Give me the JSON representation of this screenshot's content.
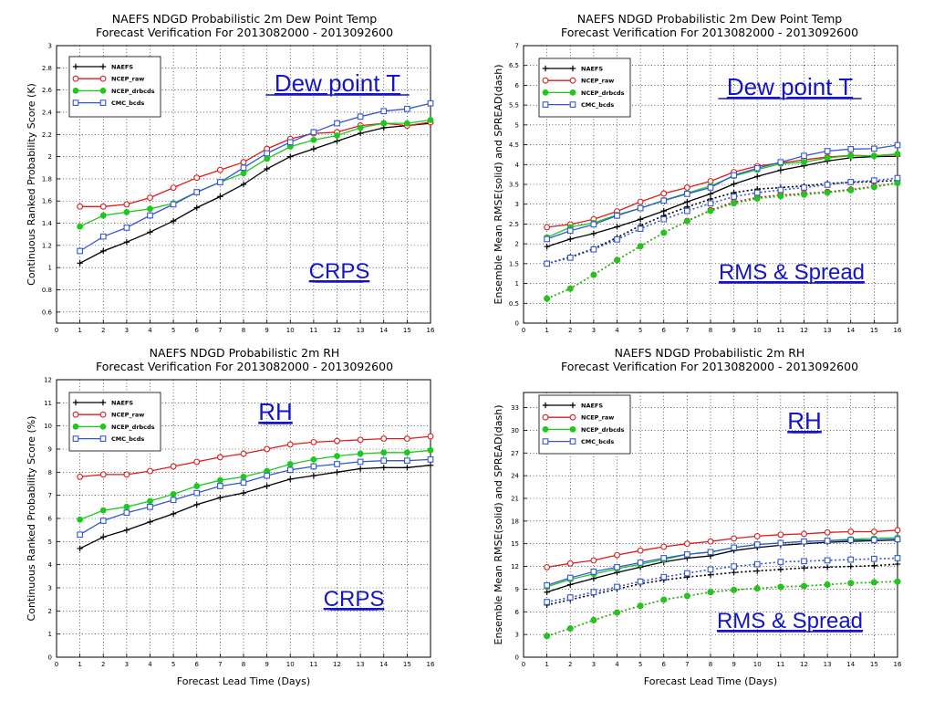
{
  "figure": {
    "background": "#ffffff",
    "annotation_color": "#1414c8",
    "series_colors": {
      "NAEFS": "#000000",
      "NCEP_raw": "#dd1c1c",
      "NCEP_drbcds": "#1dc91d",
      "CMC_bcds": "#3457d4"
    }
  },
  "chart_data": [
    {
      "type": "line",
      "title": "NAEFS NDGD Probabilistic 2m Dew Point Temp",
      "subtitle": "Forecast Verification For 2013082000 - 2013092600",
      "xlabel": "",
      "ylabel": "Continuous Ranked Probability Score (K)",
      "xlim": [
        0,
        16
      ],
      "ylim": [
        0.5,
        3
      ],
      "xticks": [
        "0",
        "1",
        "2",
        "3",
        "4",
        "5",
        "6",
        "7",
        "8",
        "9",
        "10",
        "11",
        "12",
        "13",
        "14",
        "15",
        "16"
      ],
      "yticks": [
        "0.6",
        "0.8",
        "1",
        "1.2",
        "1.4",
        "1.6",
        "1.8",
        "2",
        "2.2",
        "2.4",
        "2.6",
        "2.8",
        "3"
      ],
      "grid": true,
      "legend_position": "top-left",
      "x": [
        1,
        2,
        3,
        4,
        5,
        6,
        7,
        8,
        9,
        10,
        11,
        12,
        13,
        14,
        15,
        16
      ],
      "series": [
        {
          "name": "NAEFS",
          "marker": "plus",
          "values": [
            1.04,
            1.15,
            1.23,
            1.32,
            1.42,
            1.54,
            1.64,
            1.75,
            1.89,
            2.0,
            2.07,
            2.14,
            2.21,
            2.26,
            2.28,
            2.3
          ]
        },
        {
          "name": "NCEP_raw",
          "marker": "circle",
          "values": [
            1.55,
            1.55,
            1.57,
            1.63,
            1.72,
            1.81,
            1.88,
            1.95,
            2.07,
            2.16,
            2.21,
            2.22,
            2.28,
            2.3,
            2.28,
            2.31
          ]
        },
        {
          "name": "NCEP_drbcds",
          "marker": "dot",
          "values": [
            1.37,
            1.47,
            1.5,
            1.53,
            1.58,
            1.68,
            1.77,
            1.85,
            1.98,
            2.09,
            2.15,
            2.19,
            2.26,
            2.3,
            2.3,
            2.33
          ]
        },
        {
          "name": "CMC_bcds",
          "marker": "square",
          "values": [
            1.15,
            1.28,
            1.36,
            1.47,
            1.57,
            1.68,
            1.77,
            1.9,
            2.03,
            2.13,
            2.22,
            2.3,
            2.36,
            2.41,
            2.43,
            2.48
          ]
        }
      ],
      "annotations": [
        "Dew point T",
        "CRPS"
      ]
    },
    {
      "type": "line",
      "title": "NAEFS NDGD Probabilistic 2m Dew Point Temp",
      "subtitle": "Forecast Verification For 2013082000 - 2013092600",
      "xlabel": "",
      "ylabel": "Ensemble Mean RMSE(solid) and SPREAD(dash)",
      "xlim": [
        0,
        16
      ],
      "ylim": [
        0,
        7
      ],
      "xticks": [
        "0",
        "1",
        "2",
        "3",
        "4",
        "5",
        "6",
        "7",
        "8",
        "9",
        "10",
        "11",
        "12",
        "13",
        "14",
        "15",
        "16"
      ],
      "yticks": [
        "0",
        "0.5",
        "1",
        "1.5",
        "2",
        "2.5",
        "3",
        "3.5",
        "4",
        "4.5",
        "5",
        "5.5",
        "6",
        "6.5",
        "7"
      ],
      "grid": true,
      "legend_position": "top-left",
      "x": [
        1,
        2,
        3,
        4,
        5,
        6,
        7,
        8,
        9,
        10,
        11,
        12,
        13,
        14,
        15,
        16
      ],
      "series": [
        {
          "name": "NAEFS",
          "marker": "plus",
          "values": [
            1.93,
            2.12,
            2.26,
            2.43,
            2.62,
            2.83,
            3.06,
            3.26,
            3.51,
            3.7,
            3.86,
            3.97,
            4.09,
            4.17,
            4.2,
            4.21
          ]
        },
        {
          "name": "NCEP_raw",
          "marker": "circle",
          "values": [
            2.42,
            2.49,
            2.62,
            2.82,
            3.06,
            3.27,
            3.42,
            3.58,
            3.81,
            3.96,
            4.04,
            4.12,
            4.19,
            4.23,
            4.22,
            4.26
          ]
        },
        {
          "name": "NCEP_drbcds",
          "marker": "dot",
          "values": [
            2.16,
            2.42,
            2.53,
            2.73,
            2.9,
            3.1,
            3.28,
            3.46,
            3.71,
            3.87,
            4.02,
            4.06,
            4.17,
            4.22,
            4.22,
            4.27
          ]
        },
        {
          "name": "CMC_bcds",
          "marker": "square",
          "values": [
            2.12,
            2.33,
            2.49,
            2.71,
            2.9,
            3.09,
            3.26,
            3.42,
            3.73,
            3.91,
            4.06,
            4.22,
            4.34,
            4.39,
            4.4,
            4.49
          ]
        },
        {
          "name": "NAEFS",
          "style": "dashed",
          "marker": "plus",
          "values": [
            1.5,
            1.67,
            1.88,
            2.16,
            2.46,
            2.71,
            2.93,
            3.13,
            3.29,
            3.38,
            3.42,
            3.46,
            3.52,
            3.55,
            3.57,
            3.6
          ]
        },
        {
          "name": "NCEP_raw",
          "style": "dashed",
          "marker": "circle",
          "values": [
            0.62,
            0.87,
            1.22,
            1.59,
            1.94,
            2.28,
            2.58,
            2.85,
            3.05,
            3.17,
            3.23,
            3.27,
            3.31,
            3.37,
            3.45,
            3.54
          ]
        },
        {
          "name": "NCEP_drbcds",
          "style": "dashed",
          "marker": "dot",
          "values": [
            0.62,
            0.87,
            1.22,
            1.59,
            1.94,
            2.28,
            2.57,
            2.83,
            3.02,
            3.14,
            3.2,
            3.24,
            3.29,
            3.35,
            3.43,
            3.53
          ]
        },
        {
          "name": "CMC_bcds",
          "style": "dashed",
          "marker": "square",
          "values": [
            1.5,
            1.65,
            1.86,
            2.11,
            2.38,
            2.62,
            2.83,
            3.02,
            3.19,
            3.29,
            3.36,
            3.42,
            3.49,
            3.56,
            3.6,
            3.66
          ]
        }
      ],
      "annotations": [
        "Dew point T",
        "RMS & Spread"
      ]
    },
    {
      "type": "line",
      "title": "NAEFS NDGD Probabilistic 2m RH",
      "subtitle": "Forecast Verification For 2013082000 - 2013092600",
      "xlabel": "Forecast Lead Time (Days)",
      "ylabel": "Continuous Ranked Probability Score (%)",
      "xlim": [
        0,
        16
      ],
      "ylim": [
        0,
        12
      ],
      "xticks": [
        "0",
        "1",
        "2",
        "3",
        "4",
        "5",
        "6",
        "7",
        "8",
        "9",
        "10",
        "11",
        "12",
        "13",
        "14",
        "15",
        "16"
      ],
      "yticks": [
        "0",
        "1",
        "2",
        "3",
        "4",
        "5",
        "6",
        "7",
        "8",
        "9",
        "10",
        "11",
        "12"
      ],
      "grid": true,
      "legend_position": "top-left",
      "x": [
        1,
        2,
        3,
        4,
        5,
        6,
        7,
        8,
        9,
        10,
        11,
        12,
        13,
        14,
        15,
        16
      ],
      "series": [
        {
          "name": "NAEFS",
          "marker": "plus",
          "values": [
            4.7,
            5.2,
            5.5,
            5.85,
            6.2,
            6.6,
            6.9,
            7.1,
            7.4,
            7.7,
            7.85,
            8.0,
            8.15,
            8.2,
            8.2,
            8.3
          ]
        },
        {
          "name": "NCEP_raw",
          "marker": "circle",
          "values": [
            7.8,
            7.9,
            7.9,
            8.05,
            8.25,
            8.45,
            8.65,
            8.8,
            9.0,
            9.2,
            9.3,
            9.35,
            9.4,
            9.45,
            9.45,
            9.55
          ]
        },
        {
          "name": "NCEP_drbcds",
          "marker": "dot",
          "values": [
            5.95,
            6.35,
            6.5,
            6.75,
            7.05,
            7.4,
            7.65,
            7.8,
            8.05,
            8.35,
            8.55,
            8.7,
            8.8,
            8.85,
            8.85,
            8.95
          ]
        },
        {
          "name": "CMC_bcds",
          "marker": "square",
          "values": [
            5.3,
            5.9,
            6.25,
            6.5,
            6.8,
            7.1,
            7.4,
            7.55,
            7.85,
            8.1,
            8.25,
            8.35,
            8.45,
            8.5,
            8.5,
            8.55
          ]
        }
      ],
      "annotations": [
        "RH",
        "CRPS"
      ]
    },
    {
      "type": "line",
      "title": "NAEFS NDGD Probabilistic 2m RH",
      "subtitle": "Forecast Verification For 2013082000 - 2013092600",
      "xlabel": "Forecast Lead Time (Days)",
      "ylabel": "Ensemble Mean RMSE(solid) and SPREAD(dash)",
      "xlim": [
        0,
        16
      ],
      "ylim": [
        0,
        35
      ],
      "xticks": [
        "0",
        "1",
        "2",
        "3",
        "4",
        "5",
        "6",
        "7",
        "8",
        "9",
        "10",
        "11",
        "12",
        "13",
        "14",
        "15",
        "16"
      ],
      "yticks": [
        "0",
        "3",
        "6",
        "9",
        "12",
        "15",
        "18",
        "21",
        "24",
        "27",
        "30",
        "33"
      ],
      "grid": true,
      "legend_position": "top-left",
      "x": [
        1,
        2,
        3,
        4,
        5,
        6,
        7,
        8,
        9,
        10,
        11,
        12,
        13,
        14,
        15,
        16
      ],
      "series": [
        {
          "name": "NAEFS",
          "marker": "plus",
          "values": [
            8.6,
            9.6,
            10.4,
            11.2,
            11.9,
            12.6,
            13.1,
            13.4,
            14.1,
            14.5,
            14.8,
            15.0,
            15.2,
            15.3,
            15.4,
            15.5
          ]
        },
        {
          "name": "NCEP_raw",
          "marker": "circle",
          "values": [
            11.9,
            12.4,
            12.8,
            13.5,
            14.1,
            14.6,
            15.0,
            15.3,
            15.7,
            16.0,
            16.2,
            16.3,
            16.5,
            16.6,
            16.6,
            16.8
          ]
        },
        {
          "name": "NCEP_drbcds",
          "marker": "dot",
          "values": [
            9.3,
            10.3,
            11.0,
            11.7,
            12.3,
            12.9,
            13.6,
            13.9,
            14.5,
            14.9,
            15.1,
            15.3,
            15.4,
            15.6,
            15.7,
            15.8
          ]
        },
        {
          "name": "CMC_bcds",
          "marker": "square",
          "values": [
            9.5,
            10.5,
            11.3,
            11.9,
            12.5,
            13.1,
            13.6,
            13.9,
            14.5,
            14.9,
            15.1,
            15.3,
            15.4,
            15.5,
            15.5,
            15.6
          ]
        },
        {
          "name": "NAEFS",
          "style": "dashed",
          "marker": "plus",
          "values": [
            6.9,
            7.6,
            8.3,
            9.0,
            9.7,
            10.2,
            10.6,
            10.9,
            11.2,
            11.4,
            11.6,
            11.8,
            11.9,
            12.0,
            12.1,
            12.3
          ]
        },
        {
          "name": "NCEP_raw",
          "style": "dashed",
          "marker": "circle",
          "values": [
            2.8,
            3.8,
            4.9,
            5.9,
            6.8,
            7.6,
            8.1,
            8.6,
            8.9,
            9.1,
            9.3,
            9.4,
            9.6,
            9.8,
            9.9,
            10.0
          ]
        },
        {
          "name": "NCEP_drbcds",
          "style": "dashed",
          "marker": "dot",
          "values": [
            2.8,
            3.8,
            4.9,
            5.9,
            6.8,
            7.6,
            8.1,
            8.6,
            8.9,
            9.1,
            9.3,
            9.4,
            9.6,
            9.8,
            9.9,
            10.0
          ]
        },
        {
          "name": "CMC_bcds",
          "style": "dashed",
          "marker": "square",
          "values": [
            7.3,
            7.9,
            8.6,
            9.3,
            10.0,
            10.6,
            11.1,
            11.6,
            12.0,
            12.3,
            12.6,
            12.7,
            12.8,
            12.9,
            13.0,
            13.1
          ]
        }
      ],
      "annotations": [
        "RH",
        "RMS & Spread"
      ]
    }
  ]
}
